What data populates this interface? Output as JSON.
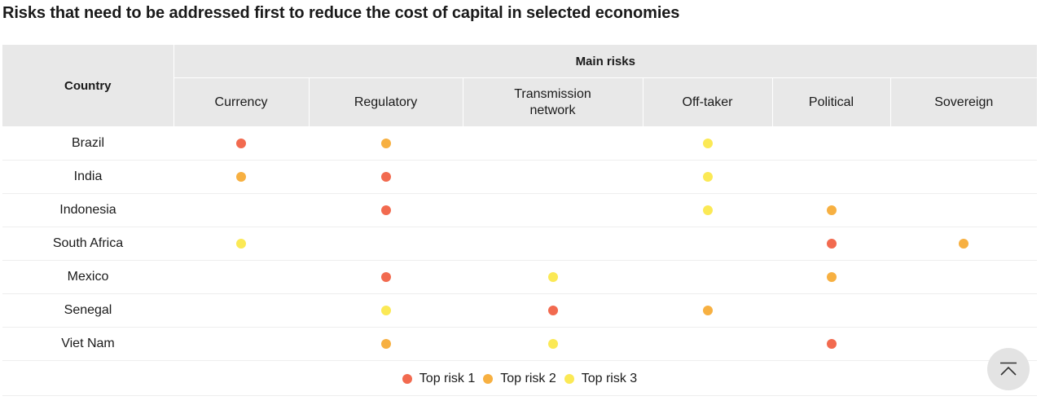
{
  "title": "Risks that need to be addressed first to reduce the cost of capital in selected economies",
  "table": {
    "country_header": "Country",
    "group_header": "Main risks",
    "columns": [
      "Currency",
      "Regulatory",
      "Transmission\nnetwork",
      "Off-taker",
      "Political",
      "Sovereign"
    ],
    "rows": [
      {
        "country": "Brazil",
        "risks": [
          1,
          2,
          0,
          3,
          0,
          0
        ]
      },
      {
        "country": "India",
        "risks": [
          2,
          1,
          0,
          3,
          0,
          0
        ]
      },
      {
        "country": "Indonesia",
        "risks": [
          0,
          1,
          0,
          3,
          2,
          0
        ]
      },
      {
        "country": "South Africa",
        "risks": [
          3,
          0,
          0,
          0,
          1,
          2
        ]
      },
      {
        "country": "Mexico",
        "risks": [
          0,
          1,
          3,
          0,
          2,
          0
        ]
      },
      {
        "country": "Senegal",
        "risks": [
          0,
          3,
          1,
          2,
          0,
          0
        ]
      },
      {
        "country": "Viet Nam",
        "risks": [
          0,
          2,
          3,
          0,
          1,
          0
        ]
      }
    ]
  },
  "legend": [
    {
      "label": "Top risk 1",
      "level": 1,
      "color": "#f26a4f"
    },
    {
      "label": "Top risk 2",
      "level": 2,
      "color": "#f7b041"
    },
    {
      "label": "Top risk 3",
      "level": 3,
      "color": "#fbe955"
    }
  ],
  "scroll_top_icon": "chevron-up-bar-icon"
}
